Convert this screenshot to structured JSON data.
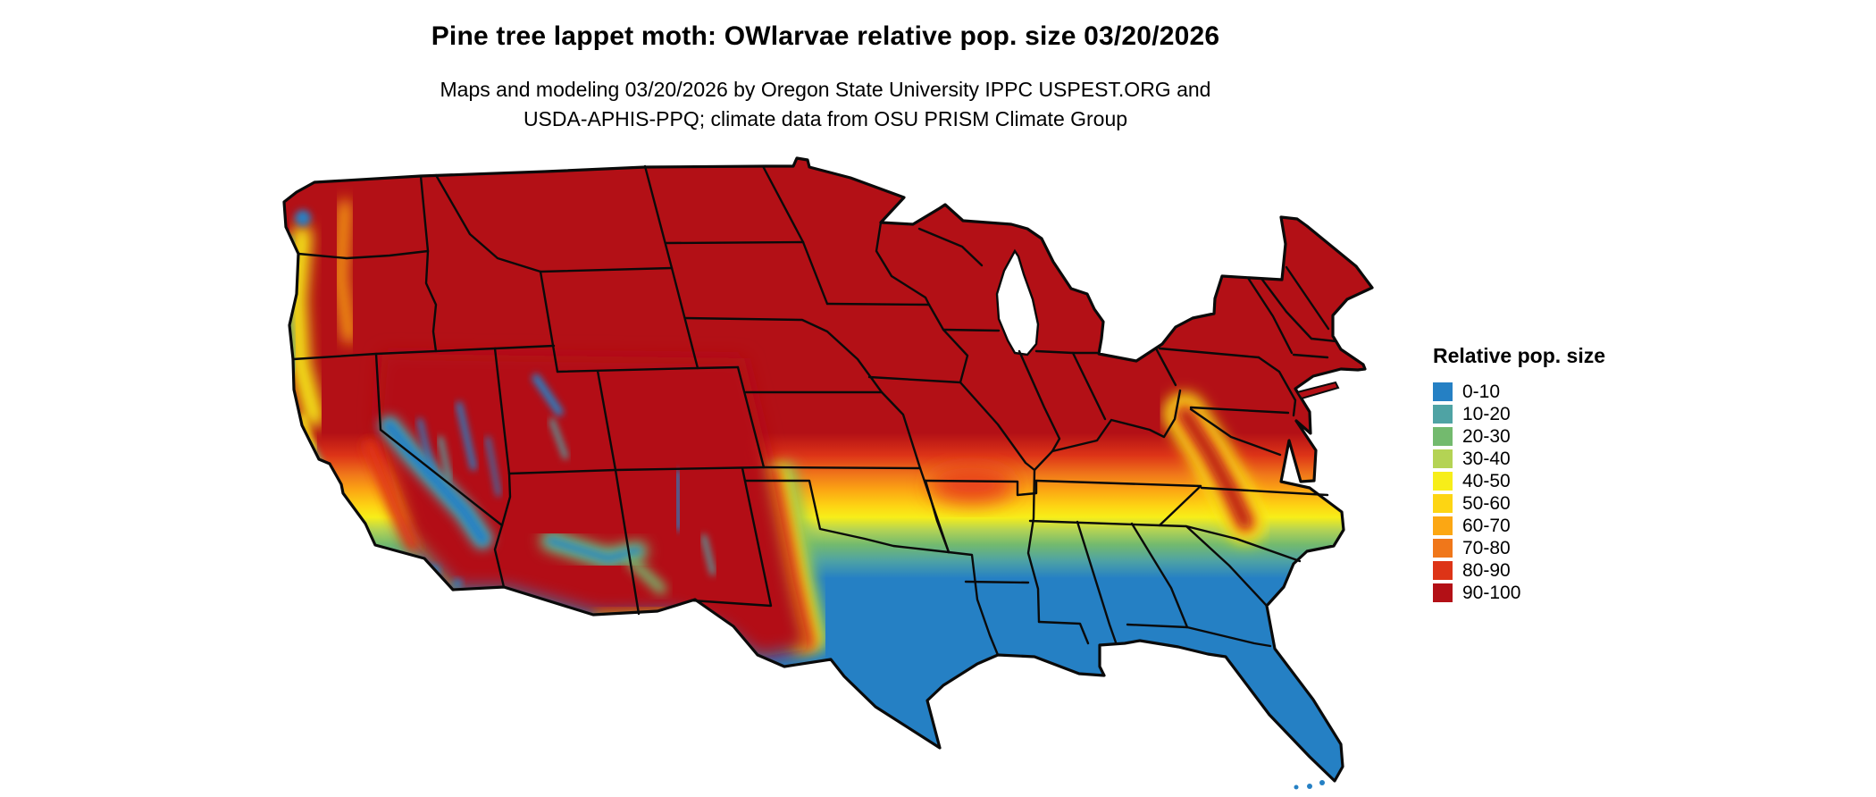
{
  "title": "Pine tree lappet moth: OWlarvae relative pop. size 03/20/2026",
  "subtitle": {
    "line1": "Maps and modeling 03/20/2026 by Oregon State University IPPC USPEST.ORG and",
    "line2": "USDA-APHIS-PPQ; climate data from OSU PRISM Climate Group"
  },
  "map": {
    "region": "contiguous United States",
    "kind": "choropleth raster of relative population size"
  },
  "legend": {
    "title": "Relative pop. size",
    "items": [
      {
        "label": "0-10",
        "color": "#2580c4"
      },
      {
        "label": "10-20",
        "color": "#4fa3a4"
      },
      {
        "label": "20-30",
        "color": "#73ba6e"
      },
      {
        "label": "30-40",
        "color": "#b4d354"
      },
      {
        "label": "40-50",
        "color": "#f7ee19"
      },
      {
        "label": "50-60",
        "color": "#fdd513"
      },
      {
        "label": "60-70",
        "color": "#fca713"
      },
      {
        "label": "70-80",
        "color": "#f0771a"
      },
      {
        "label": "80-90",
        "color": "#dd3417"
      },
      {
        "label": "90-100",
        "color": "#b31016"
      }
    ]
  }
}
